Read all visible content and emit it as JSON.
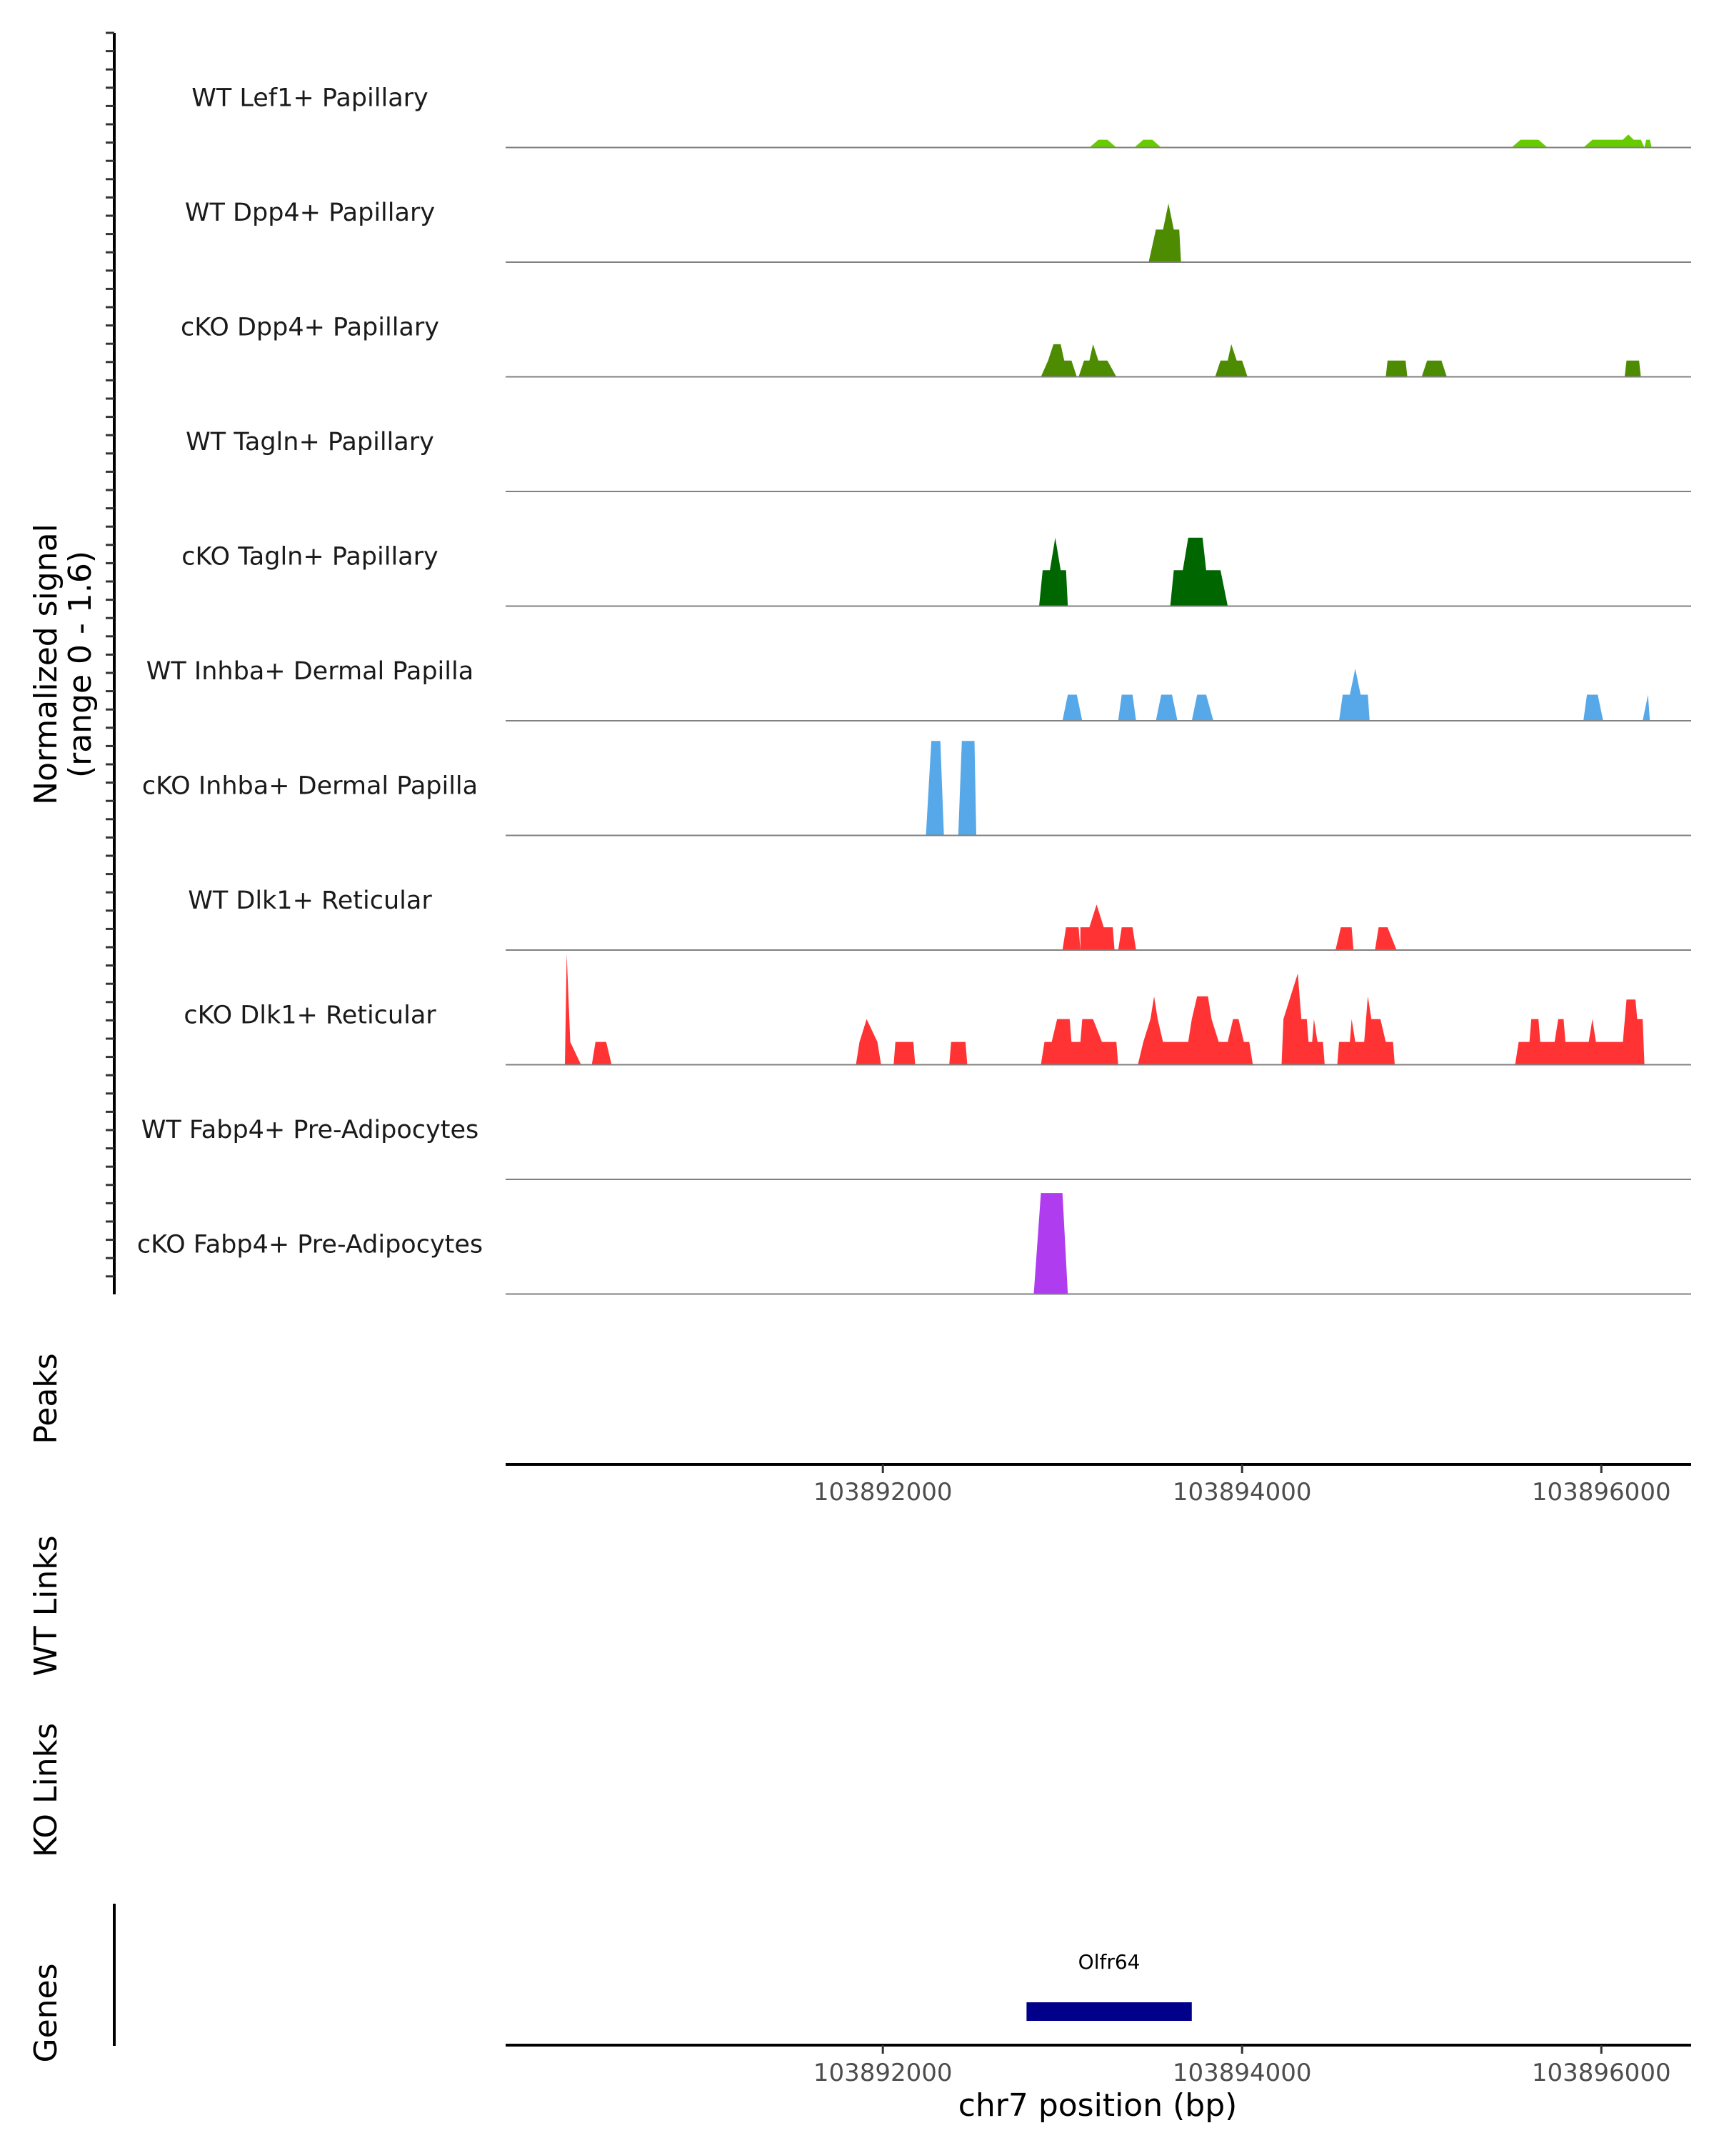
{
  "chart_data": {
    "type": "area",
    "title": "",
    "chromosome": "chr7",
    "xlabel": "chr7 position (bp)",
    "xlim": [
      103889900,
      103896500
    ],
    "xticks": [
      103892000,
      103894000,
      103896000
    ],
    "xtick_labels": [
      "103892000",
      "103894000",
      "103896000"
    ],
    "signal": {
      "ylabel_line1": "Normalized signal",
      "ylabel_line2": "(range 0 - 1.6)",
      "ylim": [
        0,
        1.6
      ],
      "tracks": [
        {
          "name": "WT Lef1+ Papillary",
          "color": "#66cc00",
          "points": [
            [
              103893150,
              0
            ],
            [
              103893200,
              0.12
            ],
            [
              103893250,
              0.12
            ],
            [
              103893300,
              0
            ],
            [
              103893400,
              0
            ],
            [
              103893450,
              0.12
            ],
            [
              103893500,
              0.12
            ],
            [
              103893550,
              0
            ],
            [
              103895500,
              0
            ],
            [
              103895550,
              0.12
            ],
            [
              103895650,
              0.12
            ],
            [
              103895700,
              0
            ],
            [
              103895900,
              0
            ],
            [
              103895950,
              0.12
            ],
            [
              103896120,
              0.12
            ],
            [
              103896150,
              0.2
            ],
            [
              103896180,
              0.12
            ],
            [
              103896220,
              0.12
            ],
            [
              103896240,
              0
            ],
            [
              103896250,
              0.12
            ],
            [
              103896270,
              0.12
            ],
            [
              103896280,
              0
            ]
          ]
        },
        {
          "name": "WT Dpp4+ Papillary",
          "color": "#4d8c00",
          "points": [
            [
              103893480,
              0
            ],
            [
              103893520,
              0.5
            ],
            [
              103893560,
              0.5
            ],
            [
              103893590,
              0.9
            ],
            [
              103893620,
              0.5
            ],
            [
              103893650,
              0.5
            ],
            [
              103893660,
              0
            ]
          ]
        },
        {
          "name": "cKO Dpp4+ Papillary",
          "color": "#4d8c00",
          "points": [
            [
              103892880,
              0
            ],
            [
              103892920,
              0.25
            ],
            [
              103892950,
              0.5
            ],
            [
              103892990,
              0.5
            ],
            [
              103893010,
              0.25
            ],
            [
              103893050,
              0.25
            ],
            [
              103893080,
              0
            ],
            [
              103893090,
              0
            ],
            [
              103893120,
              0.25
            ],
            [
              103893150,
              0.25
            ],
            [
              103893170,
              0.5
            ],
            [
              103893200,
              0.25
            ],
            [
              103893250,
              0.25
            ],
            [
              103893300,
              0
            ],
            [
              103893850,
              0
            ],
            [
              103893880,
              0.25
            ],
            [
              103893920,
              0.25
            ],
            [
              103893940,
              0.5
            ],
            [
              103893970,
              0.25
            ],
            [
              103894000,
              0.25
            ],
            [
              103894030,
              0
            ],
            [
              103894800,
              0
            ],
            [
              103894810,
              0.25
            ],
            [
              103894910,
              0.25
            ],
            [
              103894920,
              0
            ],
            [
              103895000,
              0
            ],
            [
              103895030,
              0.25
            ],
            [
              103895110,
              0.25
            ],
            [
              103895140,
              0
            ],
            [
              103896130,
              0
            ],
            [
              103896140,
              0.25
            ],
            [
              103896210,
              0.25
            ],
            [
              103896220,
              0
            ]
          ]
        },
        {
          "name": "WT Tagln+ Papillary",
          "color": "#006600",
          "points": []
        },
        {
          "name": "cKO Tagln+ Papillary",
          "color": "#006600",
          "points": [
            [
              103892870,
              0
            ],
            [
              103892890,
              0.55
            ],
            [
              103892930,
              0.55
            ],
            [
              103892960,
              1.05
            ],
            [
              103892990,
              0.55
            ],
            [
              103893020,
              0.55
            ],
            [
              103893030,
              0
            ],
            [
              103893600,
              0
            ],
            [
              103893620,
              0.55
            ],
            [
              103893670,
              0.55
            ],
            [
              103893700,
              1.05
            ],
            [
              103893780,
              1.05
            ],
            [
              103893800,
              0.55
            ],
            [
              103893880,
              0.55
            ],
            [
              103893920,
              0
            ]
          ]
        },
        {
          "name": "WT Inhba+ Dermal Papilla",
          "color": "#56a8e8",
          "points": [
            [
              103893000,
              0
            ],
            [
              103893030,
              0.4
            ],
            [
              103893080,
              0.4
            ],
            [
              103893110,
              0
            ],
            [
              103893310,
              0
            ],
            [
              103893330,
              0.4
            ],
            [
              103893390,
              0.4
            ],
            [
              103893410,
              0
            ],
            [
              103893520,
              0
            ],
            [
              103893550,
              0.4
            ],
            [
              103893610,
              0.4
            ],
            [
              103893640,
              0
            ],
            [
              103893720,
              0
            ],
            [
              103893750,
              0.4
            ],
            [
              103893800,
              0.4
            ],
            [
              103893840,
              0
            ],
            [
              103894540,
              0
            ],
            [
              103894560,
              0.4
            ],
            [
              103894600,
              0.4
            ],
            [
              103894630,
              0.8
            ],
            [
              103894660,
              0.4
            ],
            [
              103894700,
              0.4
            ],
            [
              103894710,
              0
            ],
            [
              103895900,
              0
            ],
            [
              103895920,
              0.4
            ],
            [
              103895980,
              0.4
            ],
            [
              103896010,
              0
            ],
            [
              103896230,
              0
            ],
            [
              103896260,
              0.4
            ],
            [
              103896270,
              0
            ]
          ]
        },
        {
          "name": "cKO Inhba+ Dermal Papilla",
          "color": "#56a8e8",
          "points": [
            [
              103892240,
              0
            ],
            [
              103892270,
              1.45
            ],
            [
              103892320,
              1.45
            ],
            [
              103892340,
              0
            ],
            [
              103892420,
              0
            ],
            [
              103892440,
              1.45
            ],
            [
              103892510,
              1.45
            ],
            [
              103892520,
              0
            ]
          ]
        },
        {
          "name": "WT Dlk1+ Reticular",
          "color": "#ff3333",
          "points": [
            [
              103893000,
              0
            ],
            [
              103893020,
              0.35
            ],
            [
              103893090,
              0.35
            ],
            [
              103893100,
              0
            ],
            [
              103893100,
              0.35
            ],
            [
              103893150,
              0.35
            ],
            [
              103893190,
              0.7
            ],
            [
              103893230,
              0.35
            ],
            [
              103893280,
              0.35
            ],
            [
              103893290,
              0
            ],
            [
              103893310,
              0
            ],
            [
              103893330,
              0.35
            ],
            [
              103893390,
              0.35
            ],
            [
              103893410,
              0
            ],
            [
              103894520,
              0
            ],
            [
              103894550,
              0.35
            ],
            [
              103894610,
              0.35
            ],
            [
              103894620,
              0
            ],
            [
              103894740,
              0
            ],
            [
              103894760,
              0.35
            ],
            [
              103894810,
              0.35
            ],
            [
              103894860,
              0
            ]
          ]
        },
        {
          "name": "cKO Dlk1+ Reticular",
          "color": "#ff3333",
          "points": [
            [
              103890230,
              0
            ],
            [
              103890240,
              1.7
            ],
            [
              103890260,
              0.35
            ],
            [
              103890320,
              0
            ],
            [
              103890380,
              0
            ],
            [
              103890400,
              0.35
            ],
            [
              103890460,
              0.35
            ],
            [
              103890490,
              0
            ],
            [
              103891850,
              0
            ],
            [
              103891870,
              0.35
            ],
            [
              103891910,
              0.7
            ],
            [
              103891970,
              0.35
            ],
            [
              103891990,
              0
            ],
            [
              103892060,
              0
            ],
            [
              103892070,
              0.35
            ],
            [
              103892170,
              0.35
            ],
            [
              103892180,
              0
            ],
            [
              103892370,
              0
            ],
            [
              103892380,
              0.35
            ],
            [
              103892460,
              0.35
            ],
            [
              103892470,
              0
            ],
            [
              103892880,
              0
            ],
            [
              103892900,
              0.35
            ],
            [
              103892940,
              0.35
            ],
            [
              103892970,
              0.7
            ],
            [
              103893040,
              0.7
            ],
            [
              103893050,
              0.35
            ],
            [
              103893100,
              0.35
            ],
            [
              103893110,
              0.7
            ],
            [
              103893170,
              0.7
            ],
            [
              103893220,
              0.35
            ],
            [
              103893300,
              0.35
            ],
            [
              103893310,
              0
            ],
            [
              103893420,
              0
            ],
            [
              103893450,
              0.35
            ],
            [
              103893490,
              0.7
            ],
            [
              103893510,
              1.05
            ],
            [
              103893530,
              0.7
            ],
            [
              103893560,
              0.35
            ],
            [
              103893700,
              0.35
            ],
            [
              103893720,
              0.7
            ],
            [
              103893750,
              1.05
            ],
            [
              103893810,
              1.05
            ],
            [
              103893830,
              0.7
            ],
            [
              103893870,
              0.35
            ],
            [
              103893920,
              0.35
            ],
            [
              103893950,
              0.7
            ],
            [
              103893980,
              0.7
            ],
            [
              103894010,
              0.35
            ],
            [
              103894040,
              0.35
            ],
            [
              103894060,
              0
            ],
            [
              103894220,
              0
            ],
            [
              103894230,
              0.7
            ],
            [
              103894270,
              1.05
            ],
            [
              103894310,
              1.4
            ],
            [
              103894330,
              0.7
            ],
            [
              103894360,
              0.7
            ],
            [
              103894370,
              0.35
            ],
            [
              103894390,
              0.35
            ],
            [
              103894400,
              0.7
            ],
            [
              103894420,
              0.35
            ],
            [
              103894450,
              0.35
            ],
            [
              103894460,
              0
            ],
            [
              103894530,
              0
            ],
            [
              103894540,
              0.35
            ],
            [
              103894600,
              0.35
            ],
            [
              103894610,
              0.7
            ],
            [
              103894630,
              0.35
            ],
            [
              103894680,
              0.35
            ],
            [
              103894700,
              1.05
            ],
            [
              103894720,
              0.7
            ],
            [
              103894770,
              0.7
            ],
            [
              103894800,
              0.35
            ],
            [
              103894840,
              0.35
            ],
            [
              103894850,
              0
            ],
            [
              103895520,
              0
            ],
            [
              103895540,
              0.35
            ],
            [
              103895600,
              0.35
            ],
            [
              103895610,
              0.7
            ],
            [
              103895650,
              0.7
            ],
            [
              103895660,
              0.35
            ],
            [
              103895740,
              0.35
            ],
            [
              103895760,
              0.7
            ],
            [
              103895790,
              0.7
            ],
            [
              103895800,
              0.35
            ],
            [
              103895930,
              0.35
            ],
            [
              103895950,
              0.7
            ],
            [
              103895970,
              0.35
            ],
            [
              103896120,
              0.35
            ],
            [
              103896140,
              1.0
            ],
            [
              103896190,
              1.0
            ],
            [
              103896200,
              0.7
            ],
            [
              103896230,
              0.7
            ],
            [
              103896240,
              0
            ]
          ]
        },
        {
          "name": "WT Fabp4+ Pre-Adipocytes",
          "color": "#b03cf0",
          "points": []
        },
        {
          "name": "cKO Fabp4+ Pre-Adipocytes",
          "color": "#b03cf0",
          "points": [
            [
              103892840,
              0
            ],
            [
              103892880,
              1.55
            ],
            [
              103893000,
              1.55
            ],
            [
              103893030,
              0
            ]
          ]
        }
      ]
    },
    "peaks_label": "Peaks",
    "wt_links_label": "WT Links",
    "ko_links_label": "KO Links",
    "genes_label": "Genes",
    "genes": [
      {
        "name": "Olfr64",
        "start": 103892800,
        "end": 103893720,
        "color": "#00008b"
      }
    ]
  }
}
